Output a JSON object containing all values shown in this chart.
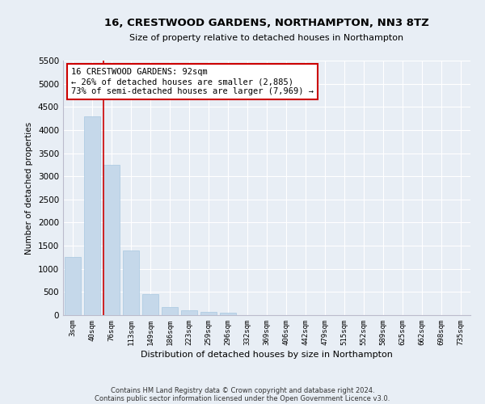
{
  "title": "16, CRESTWOOD GARDENS, NORTHAMPTON, NN3 8TZ",
  "subtitle": "Size of property relative to detached houses in Northampton",
  "xlabel": "Distribution of detached houses by size in Northampton",
  "ylabel": "Number of detached properties",
  "bar_color": "#c5d8ea",
  "bar_edge_color": "#a8c8e0",
  "background_color": "#e8eef5",
  "grid_color": "#ffffff",
  "fig_background": "#e8eef5",
  "categories": [
    "3sqm",
    "40sqm",
    "76sqm",
    "113sqm",
    "149sqm",
    "186sqm",
    "223sqm",
    "259sqm",
    "296sqm",
    "332sqm",
    "369sqm",
    "406sqm",
    "442sqm",
    "479sqm",
    "515sqm",
    "552sqm",
    "589sqm",
    "625sqm",
    "662sqm",
    "698sqm",
    "735sqm"
  ],
  "values": [
    1250,
    4300,
    3250,
    1400,
    450,
    175,
    100,
    75,
    55,
    0,
    0,
    0,
    0,
    0,
    0,
    0,
    0,
    0,
    0,
    0,
    0
  ],
  "ylim": [
    0,
    5500
  ],
  "yticks": [
    0,
    500,
    1000,
    1500,
    2000,
    2500,
    3000,
    3500,
    4000,
    4500,
    5000,
    5500
  ],
  "vline_x_index": 2.0,
  "annotation_text": "16 CRESTWOOD GARDENS: 92sqm\n← 26% of detached houses are smaller (2,885)\n73% of semi-detached houses are larger (7,969) →",
  "annotation_box_color": "#ffffff",
  "annotation_border_color": "#cc0000",
  "vline_color": "#cc0000",
  "footer_line1": "Contains HM Land Registry data © Crown copyright and database right 2024.",
  "footer_line2": "Contains public sector information licensed under the Open Government Licence v3.0."
}
